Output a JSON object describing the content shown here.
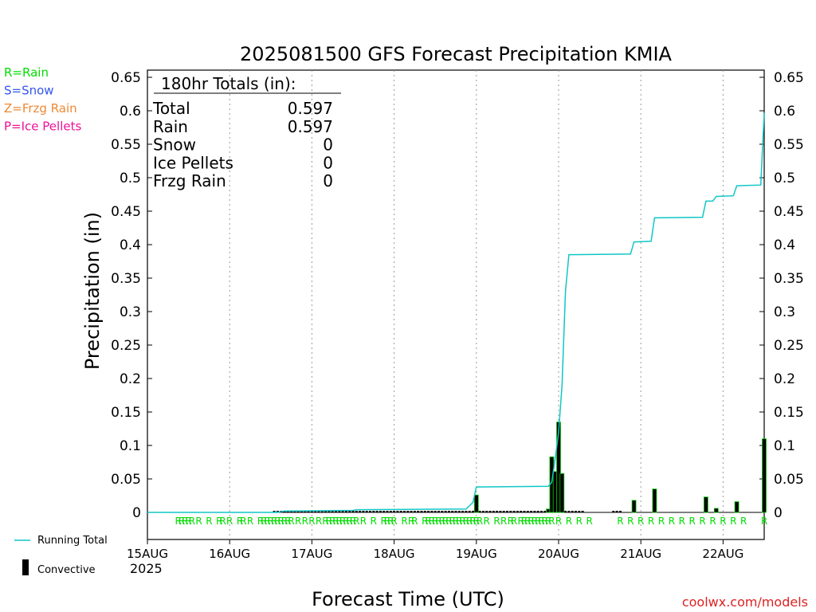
{
  "chart_data": {
    "type": "bar",
    "title": "2025081500 GFS Forecast Precipitation KMIA",
    "xlabel": "Forecast Time (UTC)",
    "ylabel": "Precipitation (in)",
    "ylim": [
      0,
      0.65
    ],
    "xlim_hours": [
      0,
      180
    ],
    "y_ticks": [
      "0",
      "0.05",
      "0.1",
      "0.15",
      "0.2",
      "0.25",
      "0.3",
      "0.35",
      "0.4",
      "0.45",
      "0.5",
      "0.55",
      "0.6",
      "0.65"
    ],
    "x_ticks": [
      {
        "label": "15AUG",
        "hour": 0
      },
      {
        "label": "16AUG",
        "hour": 24
      },
      {
        "label": "17AUG",
        "hour": 48
      },
      {
        "label": "18AUG",
        "hour": 72
      },
      {
        "label": "19AUG",
        "hour": 96
      },
      {
        "label": "20AUG",
        "hour": 120
      },
      {
        "label": "21AUG",
        "hour": 144
      },
      {
        "label": "22AUG",
        "hour": 168
      }
    ],
    "year_label": "2025",
    "grid": "vertical dotted at each day",
    "legend_left": [
      {
        "text": "R=Rain",
        "color": "#00dd00"
      },
      {
        "text": "S=Snow",
        "color": "#3355ee"
      },
      {
        "text": "Z=Frzg Rain",
        "color": "#ee8833"
      },
      {
        "text": "P=Ice Pellets",
        "color": "#ee1199"
      }
    ],
    "legend_bottom": {
      "running_total_label": "Running Total",
      "convective_label": "Convective"
    },
    "totals_box": {
      "header": "180hr Totals (in):",
      "rows": [
        {
          "label": "Total",
          "value": "0.597"
        },
        {
          "label": "Rain",
          "value": "0.597"
        },
        {
          "label": "Snow",
          "value": "0"
        },
        {
          "label": "Ice Pellets",
          "value": "0"
        },
        {
          "label": "Frzg Rain",
          "value": "0"
        }
      ]
    },
    "watermark": "coolwx.com/models",
    "running_total": [
      [
        0,
        0
      ],
      [
        38,
        0
      ],
      [
        39,
        0.001
      ],
      [
        40,
        0.002
      ],
      [
        60,
        0.003
      ],
      [
        61,
        0.004
      ],
      [
        93,
        0.005
      ],
      [
        94,
        0.01
      ],
      [
        95,
        0.015
      ],
      [
        96,
        0.038
      ],
      [
        117,
        0.039
      ],
      [
        118,
        0.045
      ],
      [
        119,
        0.08
      ],
      [
        120,
        0.12
      ],
      [
        121,
        0.19
      ],
      [
        122,
        0.33
      ],
      [
        123,
        0.385
      ],
      [
        141,
        0.386
      ],
      [
        142,
        0.404
      ],
      [
        147,
        0.405
      ],
      [
        148,
        0.44
      ],
      [
        162,
        0.441
      ],
      [
        163,
        0.465
      ],
      [
        165,
        0.465
      ],
      [
        166,
        0.472
      ],
      [
        171,
        0.473
      ],
      [
        172,
        0.488
      ],
      [
        179,
        0.489
      ],
      [
        180,
        0.597
      ]
    ],
    "convective_bars": [
      {
        "hour": 96,
        "value": 0.026
      },
      {
        "hour": 117,
        "value": 0.005
      },
      {
        "hour": 118,
        "value": 0.083
      },
      {
        "hour": 119,
        "value": 0.061
      },
      {
        "hour": 120,
        "value": 0.135
      },
      {
        "hour": 121,
        "value": 0.058
      },
      {
        "hour": 142,
        "value": 0.018
      },
      {
        "hour": 148,
        "value": 0.035
      },
      {
        "hour": 163,
        "value": 0.023
      },
      {
        "hour": 166,
        "value": 0.006
      },
      {
        "hour": 172,
        "value": 0.016
      },
      {
        "hour": 180,
        "value": 0.11
      }
    ],
    "small_bars_hours": [
      37,
      38,
      39,
      40,
      41,
      42,
      43,
      44,
      45,
      46,
      47,
      48,
      49,
      50,
      51,
      52,
      53,
      54,
      55,
      56,
      57,
      58,
      59,
      60,
      61,
      62,
      63,
      64,
      65,
      66,
      67,
      68,
      69,
      70,
      71,
      72,
      73,
      74,
      75,
      76,
      77,
      78,
      79,
      80,
      81,
      82,
      83,
      84,
      85,
      86,
      87,
      88,
      89,
      90,
      91,
      92,
      93,
      94,
      95,
      97,
      98,
      99,
      100,
      101,
      102,
      103,
      104,
      105,
      106,
      107,
      108,
      109,
      110,
      111,
      112,
      113,
      114,
      115,
      116,
      122,
      123,
      124,
      125,
      126,
      127,
      136,
      137,
      138
    ],
    "rain_markers_hours": [
      9,
      10,
      11,
      12,
      13,
      15,
      18,
      21,
      22,
      24,
      27,
      28,
      30,
      33,
      34,
      35,
      36,
      37,
      38,
      39,
      40,
      41,
      42,
      44,
      46,
      48,
      50,
      52,
      53,
      54,
      55,
      56,
      57,
      58,
      59,
      60,
      61,
      63,
      66,
      69,
      70,
      71,
      72,
      75,
      77,
      78,
      81,
      82,
      83,
      84,
      85,
      86,
      87,
      88,
      89,
      90,
      91,
      92,
      93,
      94,
      95,
      96,
      97,
      99,
      102,
      104,
      106,
      107,
      109,
      110,
      111,
      112,
      113,
      114,
      115,
      116,
      117,
      118,
      120,
      123,
      126,
      129,
      138,
      141,
      144,
      147,
      150,
      153,
      156,
      159,
      162,
      165,
      168,
      171,
      174,
      180
    ]
  }
}
